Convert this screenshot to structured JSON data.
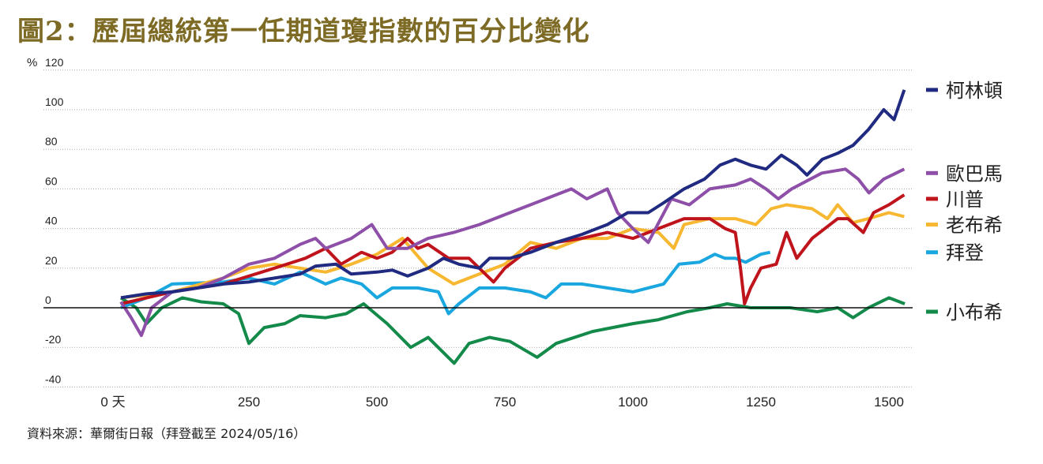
{
  "chart_data": {
    "type": "line",
    "title": "圖2：歷屆總統第一任期道瓊指數的百分比變化",
    "ylabel": "%",
    "xlabel": "",
    "ylim": [
      -40,
      120
    ],
    "xlim": [
      0,
      1550
    ],
    "yticks": [
      120,
      100,
      80,
      60,
      40,
      20,
      0,
      -20,
      -40
    ],
    "xticks": [
      {
        "v": 0,
        "label": "0 天"
      },
      {
        "v": 250,
        "label": "250"
      },
      {
        "v": 500,
        "label": "500"
      },
      {
        "v": 750,
        "label": "750"
      },
      {
        "v": 1000,
        "label": "1000"
      },
      {
        "v": 1250,
        "label": "1250"
      },
      {
        "v": 1500,
        "label": "1500"
      }
    ],
    "grid": "dotted horizontal",
    "legend": "right",
    "series": [
      {
        "name": "柯林頓",
        "color": "#1f2a80",
        "legend_y": 110,
        "points": [
          [
            0,
            5
          ],
          [
            50,
            7
          ],
          [
            100,
            8
          ],
          [
            150,
            10
          ],
          [
            200,
            12
          ],
          [
            250,
            13
          ],
          [
            300,
            15
          ],
          [
            350,
            17
          ],
          [
            380,
            21
          ],
          [
            420,
            22
          ],
          [
            450,
            17
          ],
          [
            500,
            18
          ],
          [
            530,
            19
          ],
          [
            560,
            16
          ],
          [
            600,
            20
          ],
          [
            630,
            25
          ],
          [
            660,
            22
          ],
          [
            700,
            20
          ],
          [
            720,
            25
          ],
          [
            760,
            25
          ],
          [
            800,
            28
          ],
          [
            850,
            33
          ],
          [
            900,
            37
          ],
          [
            950,
            42
          ],
          [
            990,
            48
          ],
          [
            1030,
            48
          ],
          [
            1060,
            53
          ],
          [
            1100,
            60
          ],
          [
            1140,
            65
          ],
          [
            1170,
            72
          ],
          [
            1200,
            75
          ],
          [
            1230,
            72
          ],
          [
            1260,
            70
          ],
          [
            1290,
            77
          ],
          [
            1320,
            72
          ],
          [
            1340,
            67
          ],
          [
            1370,
            75
          ],
          [
            1400,
            78
          ],
          [
            1430,
            82
          ],
          [
            1460,
            90
          ],
          [
            1490,
            100
          ],
          [
            1510,
            95
          ],
          [
            1530,
            110
          ]
        ]
      },
      {
        "name": "歐巴馬",
        "color": "#8e4fa8",
        "legend_y": 68,
        "points": [
          [
            0,
            3
          ],
          [
            20,
            -5
          ],
          [
            40,
            -14
          ],
          [
            60,
            0
          ],
          [
            100,
            8
          ],
          [
            150,
            10
          ],
          [
            200,
            15
          ],
          [
            250,
            22
          ],
          [
            300,
            25
          ],
          [
            350,
            32
          ],
          [
            380,
            35
          ],
          [
            400,
            30
          ],
          [
            450,
            35
          ],
          [
            490,
            42
          ],
          [
            520,
            30
          ],
          [
            560,
            30
          ],
          [
            600,
            35
          ],
          [
            650,
            38
          ],
          [
            700,
            42
          ],
          [
            750,
            47
          ],
          [
            800,
            52
          ],
          [
            850,
            57
          ],
          [
            880,
            60
          ],
          [
            910,
            55
          ],
          [
            950,
            60
          ],
          [
            970,
            48
          ],
          [
            1000,
            40
          ],
          [
            1030,
            33
          ],
          [
            1075,
            55
          ],
          [
            1110,
            52
          ],
          [
            1150,
            60
          ],
          [
            1200,
            62
          ],
          [
            1230,
            65
          ],
          [
            1260,
            60
          ],
          [
            1284,
            55
          ],
          [
            1310,
            60
          ],
          [
            1369,
            68
          ],
          [
            1415,
            70
          ],
          [
            1440,
            65
          ],
          [
            1461,
            58
          ],
          [
            1490,
            65
          ],
          [
            1530,
            70
          ]
        ]
      },
      {
        "name": "川普",
        "color": "#c0141c",
        "legend_y": 55,
        "points": [
          [
            0,
            2
          ],
          [
            100,
            8
          ],
          [
            200,
            12
          ],
          [
            300,
            20
          ],
          [
            360,
            25
          ],
          [
            400,
            30
          ],
          [
            430,
            22
          ],
          [
            470,
            28
          ],
          [
            500,
            25
          ],
          [
            530,
            28
          ],
          [
            560,
            35
          ],
          [
            580,
            30
          ],
          [
            600,
            32
          ],
          [
            640,
            25
          ],
          [
            680,
            25
          ],
          [
            728,
            13
          ],
          [
            750,
            20
          ],
          [
            800,
            30
          ],
          [
            850,
            33
          ],
          [
            900,
            35
          ],
          [
            950,
            38
          ],
          [
            1000,
            35
          ],
          [
            1050,
            40
          ],
          [
            1100,
            45
          ],
          [
            1150,
            45
          ],
          [
            1180,
            40
          ],
          [
            1200,
            38
          ],
          [
            1210,
            20
          ],
          [
            1218,
            2
          ],
          [
            1230,
            10
          ],
          [
            1250,
            20
          ],
          [
            1280,
            22
          ],
          [
            1300,
            38
          ],
          [
            1320,
            25
          ],
          [
            1350,
            35
          ],
          [
            1400,
            45
          ],
          [
            1420,
            45
          ],
          [
            1450,
            38
          ],
          [
            1470,
            48
          ],
          [
            1500,
            52
          ],
          [
            1530,
            57
          ]
        ]
      },
      {
        "name": "老布希",
        "color": "#f7b731",
        "legend_y": 42,
        "points": [
          [
            0,
            5
          ],
          [
            100,
            8
          ],
          [
            200,
            15
          ],
          [
            250,
            20
          ],
          [
            300,
            22
          ],
          [
            350,
            20
          ],
          [
            400,
            18
          ],
          [
            450,
            22
          ],
          [
            500,
            27
          ],
          [
            550,
            35
          ],
          [
            600,
            20
          ],
          [
            650,
            12
          ],
          [
            700,
            17
          ],
          [
            750,
            22
          ],
          [
            800,
            33
          ],
          [
            850,
            30
          ],
          [
            900,
            35
          ],
          [
            950,
            35
          ],
          [
            1000,
            40
          ],
          [
            1050,
            38
          ],
          [
            1080,
            30
          ],
          [
            1100,
            42
          ],
          [
            1150,
            45
          ],
          [
            1200,
            45
          ],
          [
            1240,
            42
          ],
          [
            1270,
            50
          ],
          [
            1300,
            52
          ],
          [
            1350,
            50
          ],
          [
            1380,
            45
          ],
          [
            1400,
            52
          ],
          [
            1430,
            43
          ],
          [
            1460,
            45
          ],
          [
            1500,
            48
          ],
          [
            1530,
            46
          ]
        ]
      },
      {
        "name": "拜登",
        "color": "#1aa7e0",
        "legend_y": 28,
        "points": [
          [
            0,
            0
          ],
          [
            50,
            5
          ],
          [
            100,
            12
          ],
          [
            200,
            13
          ],
          [
            250,
            15
          ],
          [
            300,
            12
          ],
          [
            350,
            18
          ],
          [
            400,
            12
          ],
          [
            430,
            15
          ],
          [
            470,
            12
          ],
          [
            500,
            5
          ],
          [
            530,
            10
          ],
          [
            580,
            10
          ],
          [
            620,
            8
          ],
          [
            640,
            -3
          ],
          [
            660,
            2
          ],
          [
            700,
            10
          ],
          [
            750,
            10
          ],
          [
            800,
            8
          ],
          [
            830,
            5
          ],
          [
            860,
            12
          ],
          [
            900,
            12
          ],
          [
            950,
            10
          ],
          [
            1000,
            8
          ],
          [
            1030,
            10
          ],
          [
            1060,
            12
          ],
          [
            1090,
            22
          ],
          [
            1130,
            23
          ],
          [
            1160,
            27
          ],
          [
            1180,
            25
          ],
          [
            1200,
            25
          ],
          [
            1220,
            23
          ],
          [
            1250,
            27
          ],
          [
            1268,
            28
          ]
        ]
      },
      {
        "name": "小布希",
        "color": "#138a4a",
        "legend_y": -2,
        "points": [
          [
            0,
            5
          ],
          [
            30,
            0
          ],
          [
            50,
            -8
          ],
          [
            80,
            0
          ],
          [
            120,
            5
          ],
          [
            157,
            3
          ],
          [
            200,
            2
          ],
          [
            230,
            -3
          ],
          [
            250,
            -18
          ],
          [
            280,
            -10
          ],
          [
            320,
            -8
          ],
          [
            350,
            -4
          ],
          [
            400,
            -5
          ],
          [
            440,
            -3
          ],
          [
            474,
            2
          ],
          [
            520,
            -8
          ],
          [
            566,
            -20
          ],
          [
            600,
            -15
          ],
          [
            651,
            -28
          ],
          [
            680,
            -18
          ],
          [
            720,
            -15
          ],
          [
            760,
            -17
          ],
          [
            813,
            -25
          ],
          [
            850,
            -18
          ],
          [
            921,
            -12
          ],
          [
            1000,
            -8
          ],
          [
            1050,
            -6
          ],
          [
            1106,
            -2
          ],
          [
            1150,
            0
          ],
          [
            1184,
            2
          ],
          [
            1230,
            0
          ],
          [
            1307,
            0
          ],
          [
            1360,
            -2
          ],
          [
            1400,
            0
          ],
          [
            1430,
            -5
          ],
          [
            1460,
            0
          ],
          [
            1500,
            5
          ],
          [
            1531,
            2
          ]
        ]
      }
    ]
  },
  "source": "資料來源：華爾街日報（拜登截至 2024/05/16）"
}
